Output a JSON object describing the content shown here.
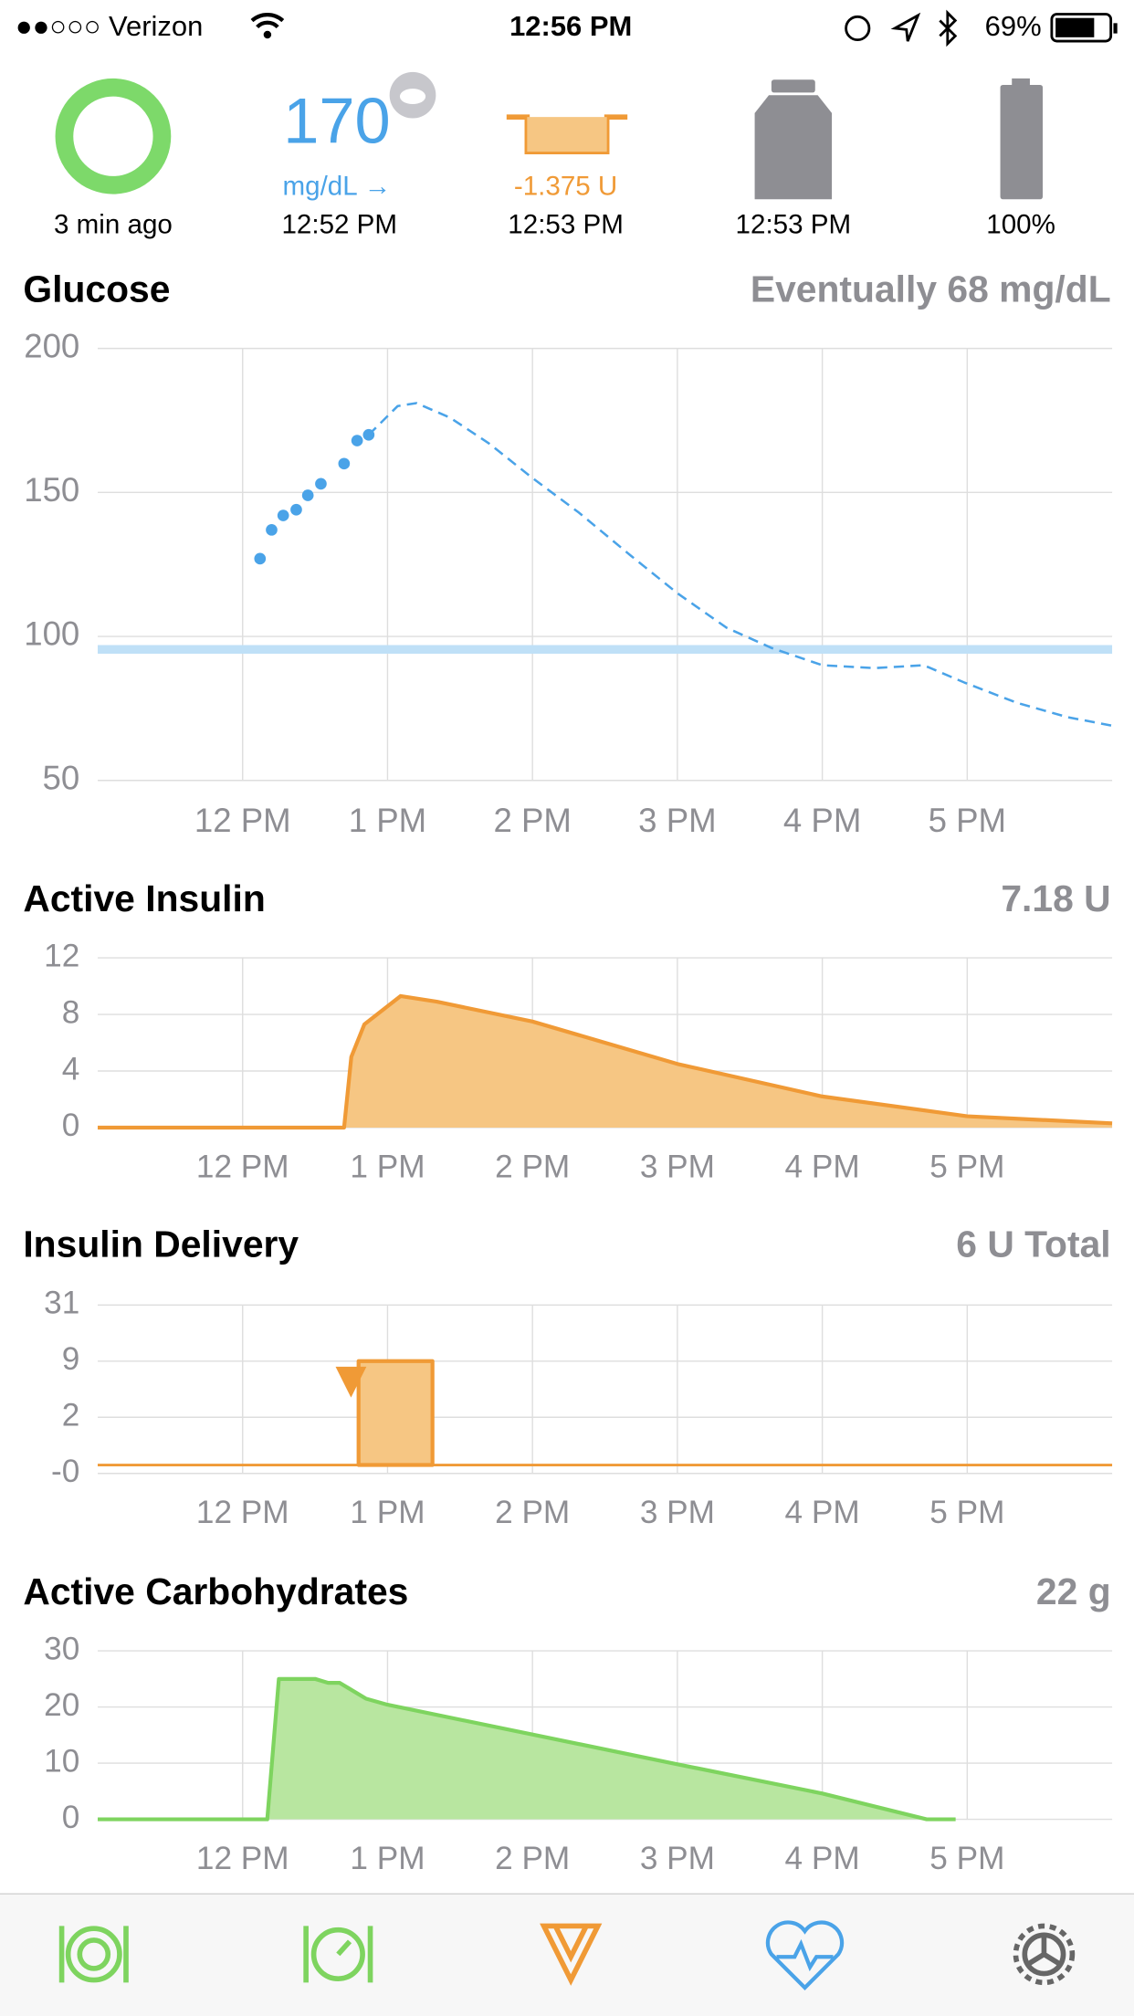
{
  "status_bar": {
    "carrier": "●●○○○ Verizon",
    "time": "12:56 PM",
    "battery": "69%"
  },
  "header": {
    "loop": {
      "label": "3 min ago"
    },
    "glucose": {
      "value": "170",
      "unit": "mg/dL →",
      "time": "12:52 PM"
    },
    "basal": {
      "value": "-1.375 U",
      "time": "12:53 PM"
    },
    "reservoir": {
      "time": "12:53 PM"
    },
    "battery": {
      "label": "100%"
    }
  },
  "chart_data": [
    {
      "type": "line",
      "title": "Glucose",
      "summary": "Eventually 68 mg/dL",
      "xlim": [
        11,
        18
      ],
      "xticks": [
        {
          "value": 12,
          "label": "12 PM"
        },
        {
          "value": 13,
          "label": "1 PM"
        },
        {
          "value": 14,
          "label": "2 PM"
        },
        {
          "value": 15,
          "label": "3 PM"
        },
        {
          "value": 16,
          "label": "4 PM"
        },
        {
          "value": 17,
          "label": "5 PM"
        }
      ],
      "ylim": [
        50,
        200
      ],
      "yticks": [
        50,
        100,
        150,
        200
      ],
      "grid": true,
      "series": [
        {
          "kind": "band",
          "color": "#bfe0f7",
          "values": [
            94,
            97
          ]
        },
        {
          "kind": "dots",
          "color": "#4aa3e8",
          "x": [
            12.12,
            12.2,
            12.28,
            12.37,
            12.45,
            12.54,
            12.7,
            12.79,
            12.87
          ],
          "values": [
            127,
            137,
            142,
            144,
            149,
            153,
            160,
            168,
            170
          ]
        },
        {
          "kind": "dashed",
          "color": "#4aa3e8",
          "x": [
            12.87,
            13.07,
            13.2,
            13.43,
            13.7,
            14,
            14.32,
            14.68,
            15,
            15.34,
            15.65,
            16,
            16.36,
            16.7,
            16.98,
            17.34,
            17.69,
            18
          ],
          "values": [
            170,
            180,
            181,
            176,
            167,
            155,
            143,
            128,
            115,
            103,
            96,
            90,
            89,
            90,
            84,
            77,
            72,
            69
          ]
        }
      ]
    },
    {
      "type": "line",
      "title": "Active Insulin",
      "summary": "7.18 U",
      "xlim": [
        11,
        18
      ],
      "xticks": [
        {
          "value": 12,
          "label": "12 PM"
        },
        {
          "value": 13,
          "label": "1 PM"
        },
        {
          "value": 14,
          "label": "2 PM"
        },
        {
          "value": 15,
          "label": "3 PM"
        },
        {
          "value": 16,
          "label": "4 PM"
        },
        {
          "value": 17,
          "label": "5 PM"
        }
      ],
      "ylim": [
        0,
        12
      ],
      "yticks": [
        0,
        4,
        8,
        12
      ],
      "grid": true,
      "series": [
        {
          "kind": "area",
          "color": "#f09a36",
          "fill": "#f6c683",
          "x": [
            11,
            12.7,
            12.75,
            12.84,
            13.09,
            13.34,
            14,
            15,
            16,
            17,
            18
          ],
          "values": [
            0,
            0,
            5,
            7.3,
            9.3,
            8.9,
            7.5,
            4.5,
            2.2,
            0.8,
            0.3
          ]
        }
      ]
    },
    {
      "type": "line",
      "title": "Insulin Delivery",
      "summary": "6 U Total",
      "xlim": [
        11,
        18
      ],
      "xticks": [
        {
          "value": 12,
          "label": "12 PM"
        },
        {
          "value": 13,
          "label": "1 PM"
        },
        {
          "value": 14,
          "label": "2 PM"
        },
        {
          "value": 15,
          "label": "3 PM"
        },
        {
          "value": 16,
          "label": "4 PM"
        },
        {
          "value": 17,
          "label": "5 PM"
        }
      ],
      "scale": "piecewise",
      "yticks": [
        {
          "value": 0,
          "label": "-0"
        },
        2,
        9,
        31
      ],
      "grid": true,
      "series": [
        {
          "kind": "line",
          "color": "#f09a36",
          "x": [
            11,
            18
          ],
          "values": [
            0.3,
            0.3
          ]
        },
        {
          "kind": "polygon",
          "color": "#f09a36",
          "fill": "#f6c683",
          "x": [
            12.8,
            12.8,
            13.31,
            13.31
          ],
          "values": [
            0.3,
            9,
            9,
            0.3
          ]
        }
      ]
    },
    {
      "type": "line",
      "title": "Active Carbohydrates",
      "summary": "22 g",
      "xlim": [
        11,
        18
      ],
      "xticks": [
        {
          "value": 12,
          "label": "12 PM"
        },
        {
          "value": 13,
          "label": "1 PM"
        },
        {
          "value": 14,
          "label": "2 PM"
        },
        {
          "value": 15,
          "label": "3 PM"
        },
        {
          "value": 16,
          "label": "4 PM"
        },
        {
          "value": 17,
          "label": "5 PM"
        }
      ],
      "ylim": [
        0,
        30
      ],
      "yticks": [
        0,
        10,
        20,
        30
      ],
      "grid": true,
      "series": [
        {
          "kind": "area",
          "color": "#7ed45f",
          "fill": "#b8e6a0",
          "x": [
            11,
            12.17,
            12.25,
            12.5,
            12.59,
            12.67,
            12.85,
            13,
            14,
            15,
            16,
            16.72,
            16.92
          ],
          "values": [
            0,
            0,
            25,
            25,
            24.3,
            24.3,
            21.5,
            20.4,
            15.1,
            9.8,
            4.6,
            0,
            0
          ]
        }
      ]
    }
  ]
}
